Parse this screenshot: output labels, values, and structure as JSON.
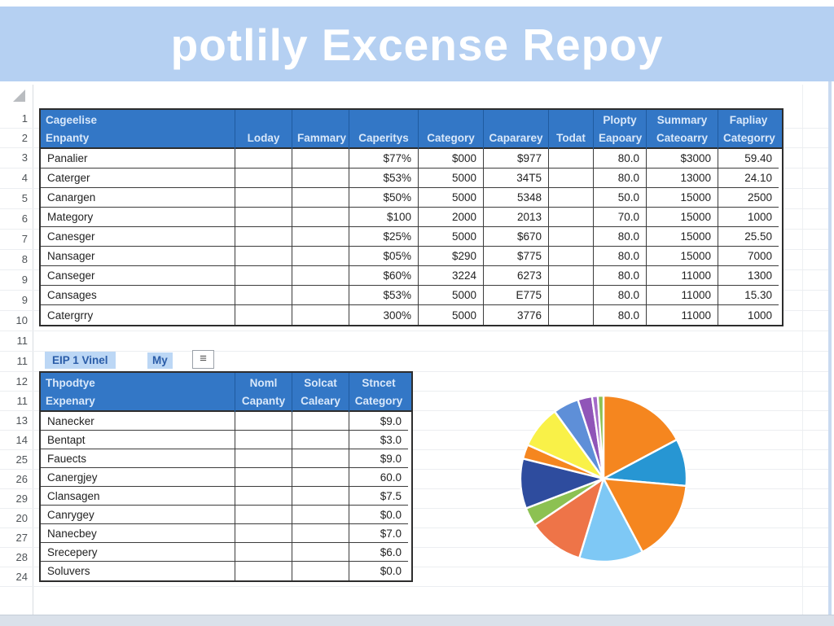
{
  "title": "potlily Excense Repoy",
  "colors": {
    "banner": "#b5d0f2",
    "header_blue": "#3377c6",
    "header_text": "#d9e8fa",
    "chip_bg": "#bcd7f5",
    "chip_text": "#2a5ca8"
  },
  "sheet": {
    "row_numbers": [
      "1",
      "2",
      "3",
      "4",
      "5",
      "6",
      "7",
      "8",
      "9",
      "9",
      "10",
      "11",
      "11",
      "12",
      "11",
      "13",
      "14",
      "25",
      "26",
      "29",
      "20",
      "27",
      "28",
      "24"
    ]
  },
  "table1": {
    "headers": [
      {
        "line1": "Cageelise",
        "line2": "Enpanty"
      },
      {
        "line1": "",
        "line2": "Loday"
      },
      {
        "line1": "",
        "line2": "Fammary"
      },
      {
        "line1": "",
        "line2": "Caperitys"
      },
      {
        "line1": "",
        "line2": "Category"
      },
      {
        "line1": "",
        "line2": "Capararey"
      },
      {
        "line1": "",
        "line2": "Todat"
      },
      {
        "line1": "Plopty",
        "line2": "Eapoary"
      },
      {
        "line1": "Summary",
        "line2": "Cateoarry"
      },
      {
        "line1": "Fapliay",
        "line2": "Categorry"
      }
    ],
    "rows": [
      {
        "cells": [
          "Panalier",
          "",
          "",
          "$77%",
          "$000",
          "$977",
          "",
          "80.0",
          "$3000",
          "59.40"
        ]
      },
      {
        "cells": [
          "Caterger",
          "",
          "",
          "$53%",
          "5000",
          "34T5",
          "",
          "80.0",
          "13000",
          "24.10"
        ]
      },
      {
        "cells": [
          "Canargen",
          "",
          "",
          "$50%",
          "5000",
          "5348",
          "",
          "50.0",
          "15000",
          "2500"
        ]
      },
      {
        "cells": [
          "Mategory",
          "",
          "",
          "$100",
          "2000",
          "2013",
          "",
          "70.0",
          "15000",
          "1000"
        ]
      },
      {
        "cells": [
          "Canesger",
          "",
          "",
          "$25%",
          "5000",
          "$670",
          "",
          "80.0",
          "15000",
          "25.50"
        ]
      },
      {
        "cells": [
          "Nansager",
          "",
          "",
          "$05%",
          "$290",
          "$775",
          "",
          "80.0",
          "15000",
          "7000"
        ]
      },
      {
        "cells": [
          "Canseger",
          "",
          "",
          "$60%",
          "3224",
          "6273",
          "",
          "80.0",
          "11000",
          "1300"
        ]
      },
      {
        "cells": [
          "Cansages",
          "",
          "",
          "$53%",
          "5000",
          "E775",
          "",
          "80.0",
          "11000",
          "15.30"
        ]
      },
      {
        "cells": [
          "Catergrry",
          "",
          "",
          "300%",
          "5000",
          "3776",
          "",
          "80.0",
          "11000",
          "1000"
        ]
      }
    ]
  },
  "controls": {
    "cell_reference": "EIP 1 Vinel",
    "chip_label": "My",
    "menu_icon": "≡"
  },
  "table2": {
    "headers": [
      {
        "line1": "Thpodtye",
        "line2": "Expenary"
      },
      {
        "line1": "Noml",
        "line2": "Capanty"
      },
      {
        "line1": "Solcat",
        "line2": "Caleary"
      },
      {
        "line1": "Stncet",
        "line2": "Category"
      }
    ],
    "rows": [
      {
        "cells": [
          "Nanecker",
          "",
          "",
          "$9.0"
        ]
      },
      {
        "cells": [
          "Bentapt",
          "",
          "",
          "$3.0"
        ]
      },
      {
        "cells": [
          "Fauects",
          "",
          "",
          "$9.0"
        ]
      },
      {
        "cells": [
          "Canergjey",
          "",
          "",
          "60.0"
        ]
      },
      {
        "cells": [
          "Clansagen",
          "",
          "",
          "$7.5"
        ]
      },
      {
        "cells": [
          "Canrygey",
          "",
          "",
          "$0.0"
        ]
      },
      {
        "cells": [
          "Nanecbey",
          "",
          "",
          "$7.0"
        ]
      },
      {
        "cells": [
          "Srecepery",
          "",
          "",
          "$6.0"
        ]
      },
      {
        "cells": [
          "Soluvers",
          "",
          "",
          "$0.0"
        ]
      }
    ]
  },
  "chart_data": {
    "type": "pie",
    "title": "",
    "legend": false,
    "labels_visible": false,
    "slices": [
      {
        "name": "slice-1",
        "color": "#F5861F",
        "degrees": 62
      },
      {
        "name": "slice-2",
        "color": "#2796D3",
        "degrees": 33
      },
      {
        "name": "slice-3",
        "color": "#F5861F",
        "degrees": 57
      },
      {
        "name": "slice-4",
        "color": "#7EC8F5",
        "degrees": 45
      },
      {
        "name": "slice-5",
        "color": "#EE7448",
        "degrees": 39
      },
      {
        "name": "slice-6",
        "color": "#8CC152",
        "degrees": 13
      },
      {
        "name": "slice-7",
        "color": "#2E4C9E",
        "degrees": 35
      },
      {
        "name": "slice-8",
        "color": "#F5861F",
        "degrees": 10
      },
      {
        "name": "slice-9",
        "color": "#F9F148",
        "degrees": 30
      },
      {
        "name": "slice-10",
        "color": "#5E8FD8",
        "degrees": 18
      },
      {
        "name": "slice-11",
        "color": "#9055B8",
        "degrees": 10
      },
      {
        "name": "slice-12",
        "color": "#A46BC8",
        "degrees": 4
      },
      {
        "name": "slice-13",
        "color": "#8CC152",
        "degrees": 4
      }
    ]
  }
}
